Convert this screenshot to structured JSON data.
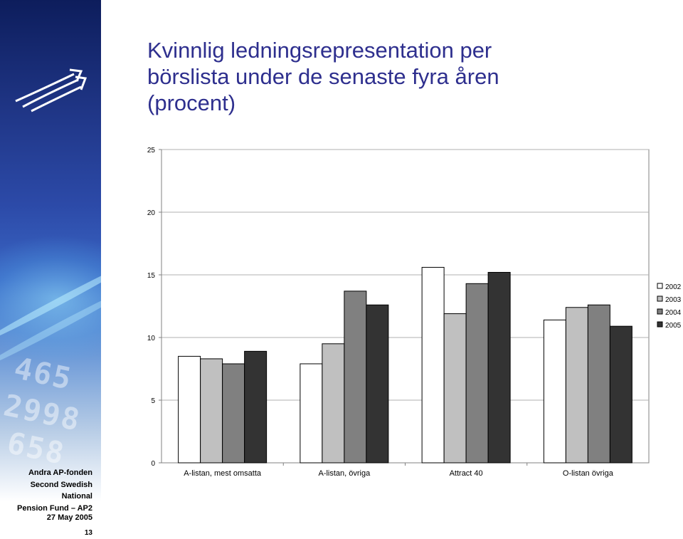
{
  "title_lines": [
    "Kvinnlig ledningsrepresentation per",
    "börslista under de senaste fyra åren",
    "(procent)"
  ],
  "sidebar": {
    "org_lines": [
      "Andra AP-fonden",
      "Second Swedish National",
      "Pension Fund – AP2"
    ],
    "date": "27 May 2005",
    "page_number": "13"
  },
  "colors": {
    "title": "#2e2f8e",
    "series": [
      "#ffffff",
      "#c0c0c0",
      "#808080",
      "#333333"
    ]
  },
  "chart_data": {
    "type": "bar",
    "title": "Kvinnlig ledningsrepresentation per börslista under de senaste fyra åren (procent)",
    "xlabel": "",
    "ylabel": "",
    "ylim": [
      0,
      25
    ],
    "yticks": [
      "0",
      "5",
      "10",
      "15",
      "20",
      "25"
    ],
    "ytick_values": [
      0,
      5,
      10,
      15,
      20,
      25
    ],
    "grid": true,
    "legend_position": "right",
    "categories": [
      "A-listan, mest omsatta",
      "A-listan, övriga",
      "Attract 40",
      "O-listan övriga"
    ],
    "series": [
      {
        "name": "2002",
        "values": [
          8.5,
          7.9,
          15.6,
          11.4
        ]
      },
      {
        "name": "2003",
        "values": [
          8.3,
          9.5,
          11.9,
          12.4
        ]
      },
      {
        "name": "2004",
        "values": [
          7.9,
          13.7,
          14.3,
          12.6
        ]
      },
      {
        "name": "2005",
        "values": [
          8.9,
          12.6,
          15.2,
          10.9
        ]
      }
    ]
  }
}
